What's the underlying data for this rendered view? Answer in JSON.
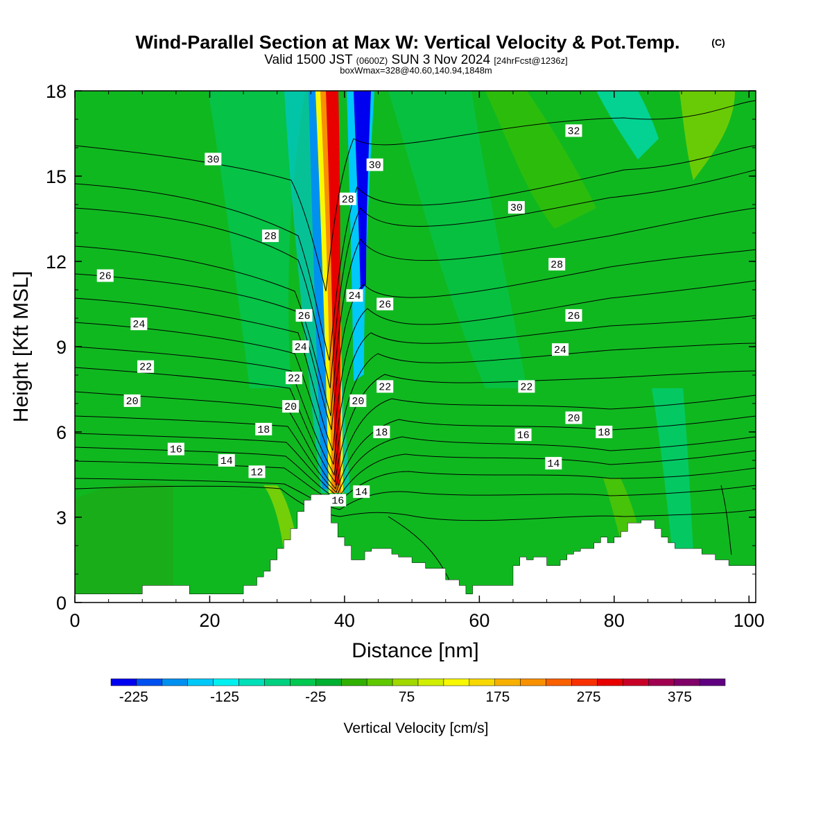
{
  "title": "Wind-Parallel Section at Max W: Vertical Velocity & Pot.Temp.",
  "title_mark": "(C)",
  "subtitle_main": "Valid 1500 JST",
  "subtitle_zulu": "(0600Z)",
  "subtitle_date": "SUN 3 Nov 2024",
  "subtitle_fcst": "[24hrFcst@1236z]",
  "subtitle_box": "boxWmax=328@40.60,140.94,1848m",
  "chart_data": {
    "type": "heatmap",
    "xlabel": "Distance [nm]",
    "ylabel": "Height [Kft MSL]",
    "xlim": [
      0,
      101
    ],
    "ylim": [
      0,
      18
    ],
    "x_ticks": [
      "0",
      "20",
      "40",
      "60",
      "80",
      "100"
    ],
    "y_ticks": [
      "0",
      "3",
      "6",
      "9",
      "12",
      "15",
      "18"
    ],
    "colorbar": {
      "label": "Vertical Velocity [cm/s]",
      "min": -250,
      "max": 425,
      "step": 25,
      "tick_values": [
        -225,
        -125,
        -25,
        75,
        175,
        275,
        375
      ],
      "tick_labels": [
        "-225",
        "-125",
        "-25",
        "75",
        "175",
        "275",
        "375"
      ],
      "colors": [
        "#0000f0",
        "#0050f0",
        "#0090f0",
        "#00c8f8",
        "#00f0f0",
        "#00e0b8",
        "#00d080",
        "#00c850",
        "#00b030",
        "#30b000",
        "#60c800",
        "#a0d800",
        "#d0ee00",
        "#f8f800",
        "#f8d800",
        "#f8b000",
        "#f89000",
        "#f86000",
        "#f83000",
        "#e80000",
        "#c80028",
        "#a00050",
        "#800068",
        "#600080"
      ]
    },
    "terrain": {
      "x": [
        0,
        10,
        10,
        17,
        17,
        25,
        25,
        27,
        27,
        28,
        28,
        29,
        29,
        30,
        30,
        31,
        31,
        32,
        32,
        33,
        33,
        34,
        34,
        35,
        35,
        36,
        36,
        37,
        37,
        38,
        38,
        39,
        39,
        40,
        40,
        41,
        41,
        43,
        43,
        44,
        44,
        47,
        47,
        48,
        48,
        50,
        50,
        52,
        52,
        55,
        55,
        57,
        57,
        58,
        58,
        59,
        59,
        60,
        60,
        65,
        65,
        66,
        66,
        67,
        67,
        68,
        68,
        70,
        70,
        71,
        71,
        72,
        72,
        73,
        73,
        74,
        74,
        75,
        75,
        77,
        77,
        78,
        78,
        79,
        79,
        80,
        80,
        81,
        81,
        82,
        82,
        84,
        84,
        85,
        85,
        86,
        86,
        87,
        87,
        88,
        88,
        89,
        89,
        91,
        91,
        93,
        93,
        95,
        95,
        97,
        97,
        101
      ],
      "kft": [
        0.3,
        0.3,
        0.6,
        0.6,
        0.3,
        0.3,
        0.6,
        0.6,
        0.9,
        0.9,
        1.1,
        1.1,
        1.5,
        1.5,
        1.9,
        1.9,
        2.2,
        2.2,
        2.6,
        2.6,
        3.2,
        3.2,
        3.6,
        3.6,
        3.8,
        3.8,
        3.8,
        3.8,
        3.8,
        3.8,
        2.8,
        2.8,
        2.3,
        2.3,
        2.0,
        2.0,
        1.5,
        1.5,
        1.8,
        1.8,
        1.9,
        1.9,
        1.7,
        1.7,
        1.6,
        1.6,
        1.4,
        1.4,
        1.2,
        1.2,
        0.8,
        0.8,
        0.6,
        0.6,
        0.3,
        0.3,
        0.6,
        0.6,
        0.6,
        0.6,
        1.3,
        1.3,
        1.6,
        1.6,
        1.5,
        1.5,
        1.6,
        1.6,
        1.3,
        1.3,
        1.3,
        1.3,
        1.5,
        1.5,
        1.7,
        1.7,
        1.8,
        1.8,
        1.9,
        1.9,
        2.1,
        2.1,
        2.3,
        2.3,
        2.1,
        2.1,
        2.3,
        2.3,
        2.5,
        2.5,
        2.8,
        2.8,
        2.9,
        2.9,
        2.9,
        2.9,
        2.6,
        2.6,
        2.3,
        2.3,
        2.1,
        2.1,
        1.9,
        1.9,
        1.9,
        1.9,
        1.7,
        1.7,
        1.5,
        1.5,
        1.3,
        1.3
      ]
    },
    "contour_labels": [
      {
        "text": "30",
        "x": 20.5,
        "y": 15.6
      },
      {
        "text": "32",
        "x": 74,
        "y": 16.6
      },
      {
        "text": "30",
        "x": 44.5,
        "y": 15.4
      },
      {
        "text": "28",
        "x": 40.5,
        "y": 14.2
      },
      {
        "text": "30",
        "x": 65.5,
        "y": 13.9
      },
      {
        "text": "28",
        "x": 29,
        "y": 12.9
      },
      {
        "text": "26",
        "x": 4.5,
        "y": 11.5
      },
      {
        "text": "28",
        "x": 71.5,
        "y": 11.9
      },
      {
        "text": "24",
        "x": 41.5,
        "y": 10.8
      },
      {
        "text": "26",
        "x": 46,
        "y": 10.5
      },
      {
        "text": "26",
        "x": 34,
        "y": 10.1
      },
      {
        "text": "24",
        "x": 9.5,
        "y": 9.8
      },
      {
        "text": "26",
        "x": 74,
        "y": 10.1
      },
      {
        "text": "24",
        "x": 33.5,
        "y": 9.0
      },
      {
        "text": "24",
        "x": 72,
        "y": 8.9
      },
      {
        "text": "22",
        "x": 10.5,
        "y": 8.3
      },
      {
        "text": "22",
        "x": 32.5,
        "y": 7.9
      },
      {
        "text": "22",
        "x": 46,
        "y": 7.6
      },
      {
        "text": "22",
        "x": 67,
        "y": 7.6
      },
      {
        "text": "20",
        "x": 8.5,
        "y": 7.1
      },
      {
        "text": "20",
        "x": 42,
        "y": 7.1
      },
      {
        "text": "20",
        "x": 32,
        "y": 6.9
      },
      {
        "text": "20",
        "x": 74,
        "y": 6.5
      },
      {
        "text": "18",
        "x": 28,
        "y": 6.1
      },
      {
        "text": "18",
        "x": 45.5,
        "y": 6.0
      },
      {
        "text": "16",
        "x": 66.5,
        "y": 5.9
      },
      {
        "text": "18",
        "x": 78.5,
        "y": 6.0
      },
      {
        "text": "16",
        "x": 15,
        "y": 5.4
      },
      {
        "text": "14",
        "x": 22.5,
        "y": 5.0
      },
      {
        "text": "14",
        "x": 71,
        "y": 4.9
      },
      {
        "text": "12",
        "x": 27,
        "y": 4.6
      },
      {
        "text": "14",
        "x": 42.5,
        "y": 3.9
      },
      {
        "text": "16",
        "x": 39,
        "y": 3.6
      }
    ]
  }
}
